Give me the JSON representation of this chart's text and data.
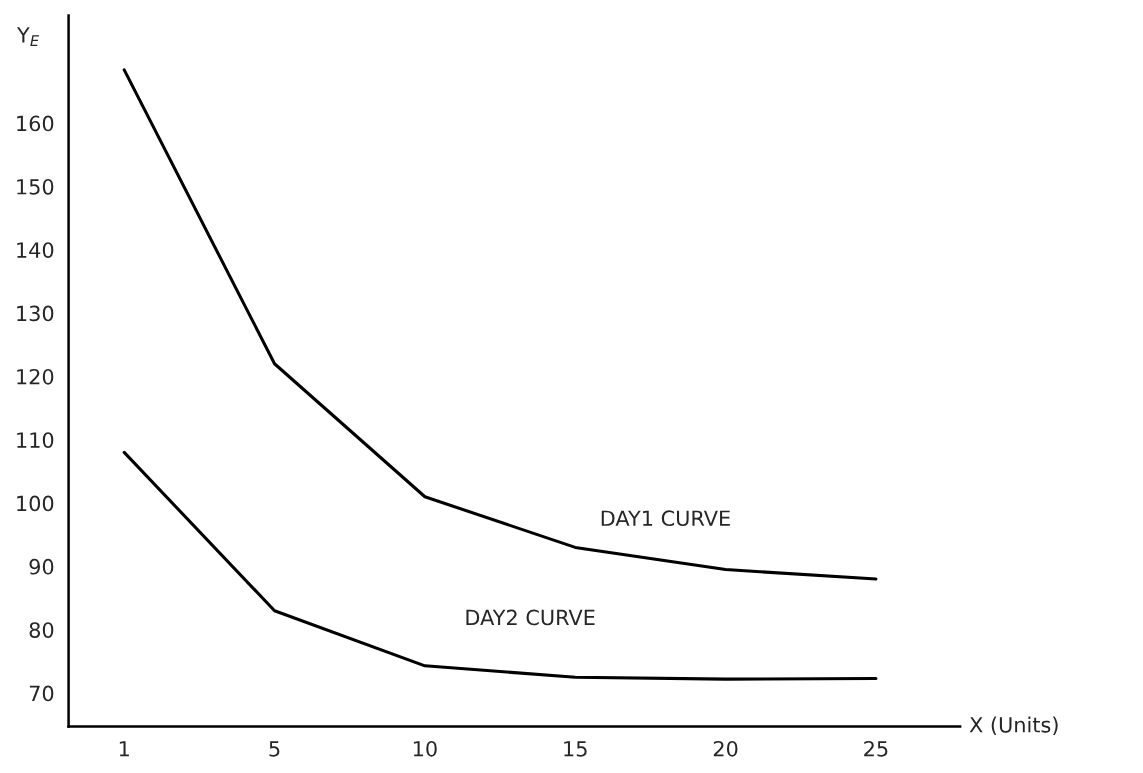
{
  "chart_data": {
    "type": "line",
    "xlabel": "X (Units)",
    "ylabel": "Y$_{E}$",
    "categories": [
      "1",
      "5",
      "10",
      "15",
      "20",
      "25"
    ],
    "ylim": [
      64.7,
      177
    ],
    "yticks": [
      70,
      80,
      90,
      100,
      110,
      120,
      130,
      140,
      150,
      160
    ],
    "grid": false,
    "legend": false,
    "marker": "none",
    "line_style": "solid",
    "series": [
      {
        "name": "DAY1 CURVE",
        "color": "#000000",
        "values": [
          168.4,
          122,
          101,
          93,
          89.5,
          88
        ]
      },
      {
        "name": "DAY2 CURVE",
        "color": "#000000",
        "values": [
          108,
          83,
          74.3,
          72.5,
          72.2,
          72.3
        ]
      }
    ]
  }
}
